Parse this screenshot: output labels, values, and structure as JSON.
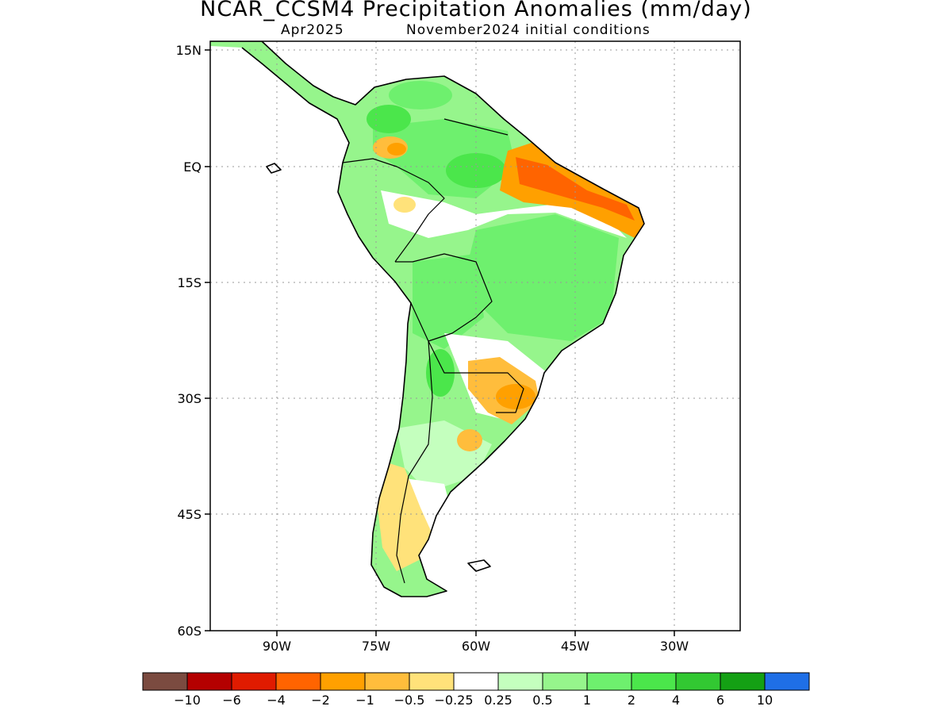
{
  "header": {
    "title": "NCAR_CCSM4 Precipitation Anomalies (mm/day)",
    "valid_month": "Apr2025",
    "init": "November2024 initial conditions"
  },
  "map": {
    "lat_ticks": [
      "15N",
      "EQ",
      "15S",
      "30S",
      "45S",
      "60S"
    ],
    "lon_ticks": [
      "90W",
      "75W",
      "60W",
      "45W",
      "30W"
    ],
    "grid": true
  },
  "anomalies": [
    {
      "region": "northern Colombia / Venezuela",
      "category": "1 to 2"
    },
    {
      "region": "western Amazon / upper Rio Negro",
      "category": "2 to 4"
    },
    {
      "region": "north-east Brazil coast (Para / Maranhao / Ceara)",
      "category": "-4 to -2"
    },
    {
      "region": "central and eastern Brazil",
      "category": "1 to 2"
    },
    {
      "region": "Bolivia and northern Argentina",
      "category": "1 to 2"
    },
    {
      "region": "Paraguay / southern Brazil / Uruguay",
      "category": "-2 to -1"
    },
    {
      "region": "central Chile / Argentine Patagonia",
      "category": "-1 to -0.5"
    }
  ],
  "colorbar": {
    "labels": [
      "-10",
      "-6",
      "-4",
      "-2",
      "-1",
      "-0.5",
      "-0.25",
      "0.25",
      "0.5",
      "1",
      "2",
      "4",
      "6",
      "10"
    ],
    "colors": [
      "#7b4b40",
      "#b40000",
      "#e01b00",
      "#ff6400",
      "#ffa000",
      "#ffbd3c",
      "#ffe27a",
      "#ffffff",
      "#c4ffbe",
      "#96f58c",
      "#6ef06e",
      "#4be64b",
      "#32c832",
      "#14a014",
      "#1f6fe6"
    ]
  }
}
